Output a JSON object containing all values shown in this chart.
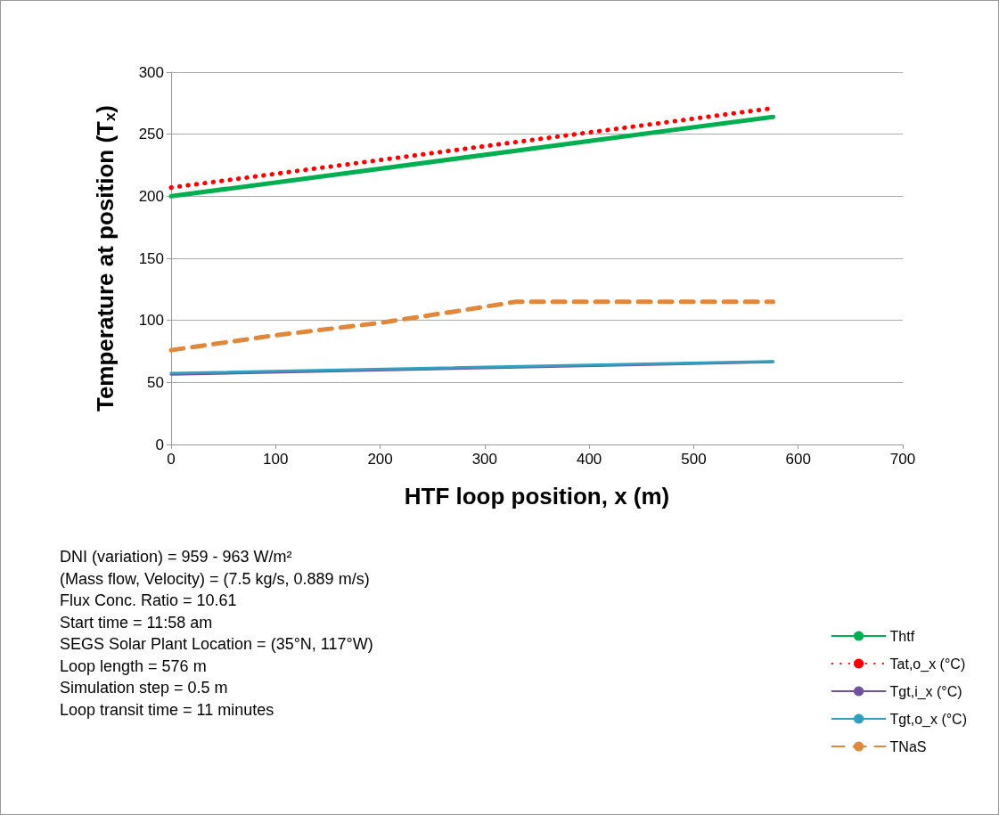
{
  "chart_data": {
    "type": "line",
    "xlabel": "HTF loop position, x (m)",
    "ylabel": "Temperature at position (T$_{x}$)",
    "xlim": [
      0,
      700
    ],
    "xticks": [
      0,
      100,
      200,
      300,
      400,
      500,
      600,
      700
    ],
    "ylim": [
      0,
      300
    ],
    "yticks": [
      0,
      50,
      100,
      150,
      200,
      250,
      300
    ],
    "grid": "y",
    "legend": "bottom right",
    "marker": "none",
    "series": [
      {
        "name": "Thtf",
        "color": "#00b050",
        "line_style": "solid",
        "x": [
          0,
          576
        ],
        "values": [
          200,
          264
        ]
      },
      {
        "name": "Tat,o_x (°C)",
        "color": "#ff0000",
        "line_style": "dotted",
        "x": [
          0,
          576
        ],
        "values": [
          207,
          271
        ]
      },
      {
        "name": "Tgt,i_x (°C)",
        "color": "#7050a0",
        "line_style": "solid",
        "x": [
          0,
          576
        ],
        "values": [
          56.5,
          66.5
        ]
      },
      {
        "name": "Tgt,o_x (°C)",
        "color": "#31a0c0",
        "line_style": "solid",
        "x": [
          0,
          576
        ],
        "values": [
          57.5,
          67
        ]
      },
      {
        "name": "TNaS",
        "color": "#e0873a",
        "line_style": "dashed",
        "x": [
          0,
          100,
          200,
          270,
          330,
          576
        ],
        "values": [
          76,
          88,
          98,
          107,
          115,
          115
        ]
      }
    ],
    "annotations": [
      "DNI (variation) = 959 - 963 W/m²",
      "(Mass flow, Velocity) = (7.5 kg/s, 0.889 m/s)",
      "Flux Conc. Ratio = 10.61",
      "Start time = 11:58 am",
      "SEGS Solar Plant Location = (35°N, 117°W)",
      "Loop length = 576 m",
      "Simulation step = 0.5 m",
      "Loop transit time = 11 minutes"
    ]
  }
}
